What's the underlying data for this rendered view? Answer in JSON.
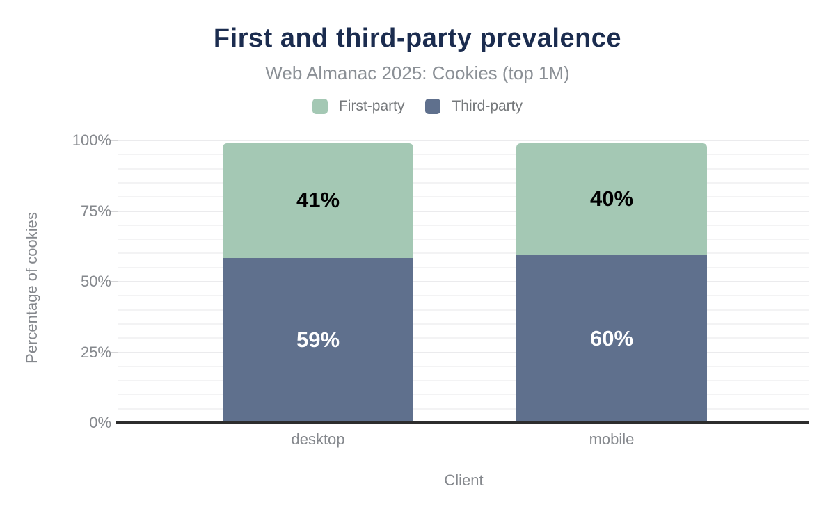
{
  "title": "First and third-party prevalence",
  "subtitle": "Web Almanac 2025: Cookies (top 1M)",
  "colors": {
    "title_text": "#1b2c4f",
    "subtitle_text": "#8b9096",
    "axis_text": "#85888d",
    "legend_text": "#75787b",
    "first_party": "#a4c8b4",
    "third_party": "#5f708d",
    "axis_line": "#2d2d2d",
    "label_on_first_party": "#000000",
    "label_on_third_party": "#ffffff"
  },
  "legend": {
    "items": [
      {
        "label": "First-party",
        "color": "#a4c8b4"
      },
      {
        "label": "Third-party",
        "color": "#5f708d"
      }
    ]
  },
  "chart_data": {
    "type": "bar",
    "stacked": true,
    "title": "First and third-party prevalence",
    "subtitle": "Web Almanac 2025: Cookies (top 1M)",
    "categories": [
      "desktop",
      "mobile"
    ],
    "series": [
      {
        "name": "Third-party",
        "values": [
          59,
          60
        ],
        "color": "#5f708d",
        "label_color": "#ffffff"
      },
      {
        "name": "First-party",
        "values": [
          41,
          40
        ],
        "color": "#a4c8b4",
        "label_color": "#000000"
      }
    ],
    "xlabel": "Client",
    "ylabel": "Percentage of cookies",
    "ylim": [
      0,
      100
    ],
    "yticks": [
      0,
      25,
      50,
      75,
      100
    ],
    "ytick_suffix": "%",
    "bar_label_suffix": "%",
    "minor_grid_step": 5,
    "grid": "horizontal minor gridlines every 5%",
    "legend_position": "top"
  }
}
